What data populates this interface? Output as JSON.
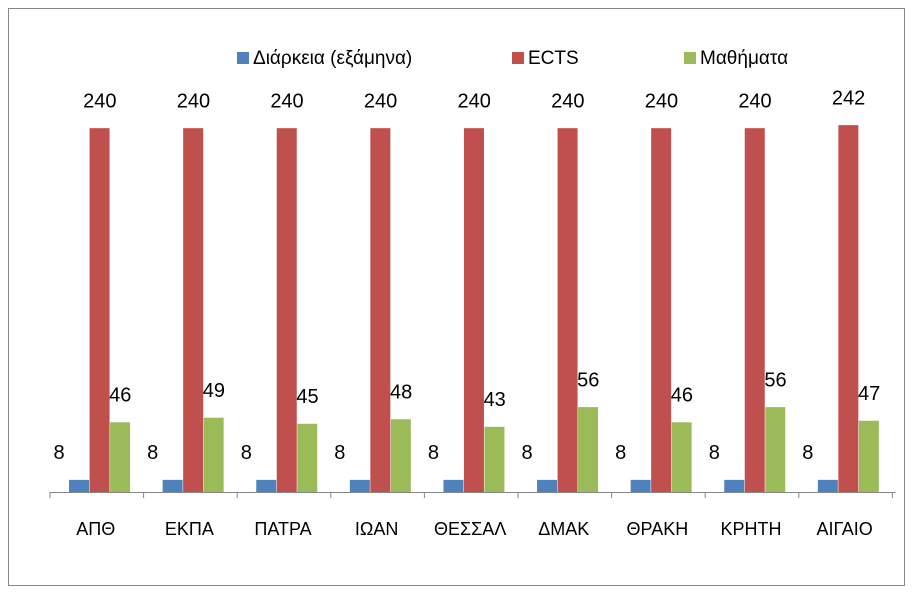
{
  "chart_data": {
    "type": "bar",
    "categories": [
      "ΑΠΘ",
      "ΕΚΠΑ",
      "ΠΑΤΡΑ",
      "ΙΩΑΝ",
      "ΘΕΣΣΑΛ",
      "ΔΜΑΚ",
      "ΘΡΑΚΗ",
      "ΚΡΗΤΗ",
      "ΑΙΓΑΙΟ"
    ],
    "series": [
      {
        "name": "Διάρκεια (εξάμηνα)",
        "color": "#4f81bd",
        "values": [
          8,
          8,
          8,
          8,
          8,
          8,
          8,
          8,
          8
        ]
      },
      {
        "name": "ECTS",
        "color": "#c0504d",
        "values": [
          240,
          240,
          240,
          240,
          240,
          240,
          240,
          240,
          242
        ]
      },
      {
        "name": "Μαθήματα",
        "color": "#9bbb59",
        "values": [
          46,
          49,
          45,
          48,
          43,
          56,
          46,
          56,
          47
        ]
      }
    ],
    "ylim": [
      0,
      250
    ],
    "legend": "top"
  }
}
